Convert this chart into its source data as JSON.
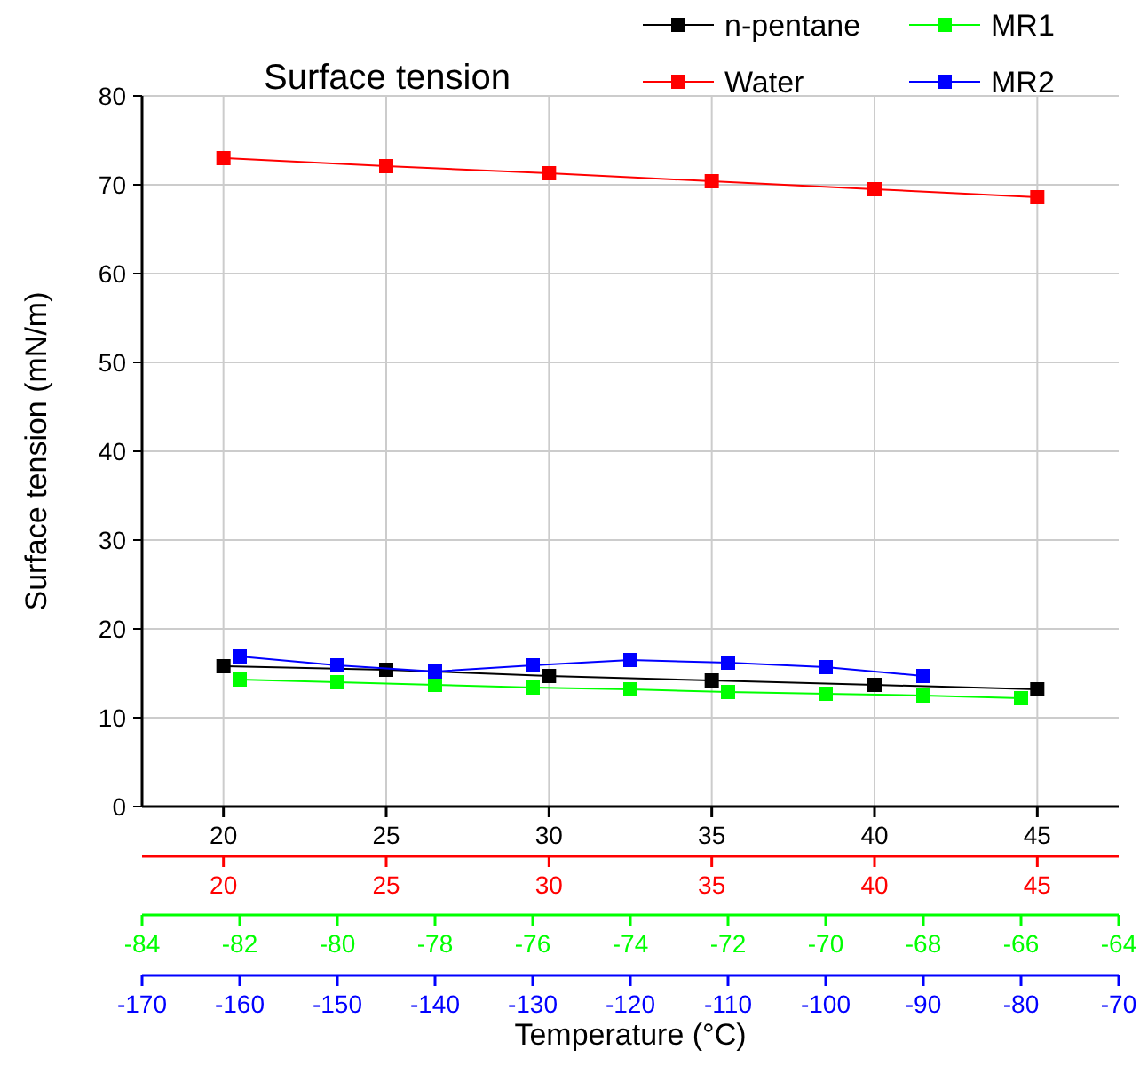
{
  "chart_data": [
    {
      "type": "line",
      "title": "Surface tension",
      "ylabel": "Surface tension (mN/m)",
      "xlim": [
        17.5,
        47.5
      ],
      "xticks": [
        20,
        25,
        30,
        35,
        40,
        45
      ],
      "x2lim": [
        17.5,
        47.5
      ],
      "x2ticks": [
        20,
        25,
        30,
        35,
        40,
        45
      ],
      "ylim": [
        0,
        80
      ],
      "yticks": [
        0,
        10,
        20,
        30,
        40,
        50,
        60,
        70,
        80
      ],
      "grid": true,
      "legend": "top right",
      "marker": "square",
      "line_style": "solid",
      "series": [
        {
          "name": "n-pentane",
          "color": "#000000",
          "x": [
            20,
            25,
            30,
            35,
            40,
            45
          ],
          "values": [
            15.8,
            15.4,
            14.7,
            14.2,
            13.7,
            13.2
          ]
        },
        {
          "name": "Water",
          "color": "#ff0000",
          "axis": "x2",
          "x": [
            20,
            25,
            30,
            35,
            40,
            45
          ],
          "values": [
            73.0,
            72.1,
            71.3,
            70.4,
            69.5,
            68.6
          ]
        }
      ]
    },
    {
      "type": "line",
      "xlabel": "Temperature (°C)",
      "xlim": [
        -84,
        -64
      ],
      "xticks": [
        -84,
        -82,
        -80,
        -78,
        -76,
        -74,
        -72,
        -70,
        -68,
        -66,
        -64
      ],
      "x2lim": [
        -170,
        -70
      ],
      "x2ticks": [
        -170,
        -160,
        -150,
        -140,
        -130,
        -120,
        -110,
        -100,
        -90,
        -80,
        -70
      ],
      "ylim": [
        0,
        80
      ],
      "tick_labels": "x",
      "legend": "top right",
      "marker": "square",
      "line_style": "solid",
      "series": [
        {
          "name": "MR1",
          "color": "#00ff00",
          "x": [
            -82,
            -80,
            -78,
            -76,
            -74,
            -72,
            -70,
            -68,
            -66
          ],
          "values": [
            14.3,
            14.0,
            13.7,
            13.4,
            13.2,
            12.9,
            12.7,
            12.5,
            12.2
          ]
        },
        {
          "name": "MR2",
          "color": "#0000ff",
          "axis": "x2",
          "x": [
            -160,
            -150,
            -140,
            -130,
            -120,
            -110,
            -100,
            -90
          ],
          "values": [
            16.9,
            15.9,
            15.2,
            15.9,
            16.5,
            16.2,
            15.7,
            14.7
          ]
        }
      ]
    }
  ]
}
